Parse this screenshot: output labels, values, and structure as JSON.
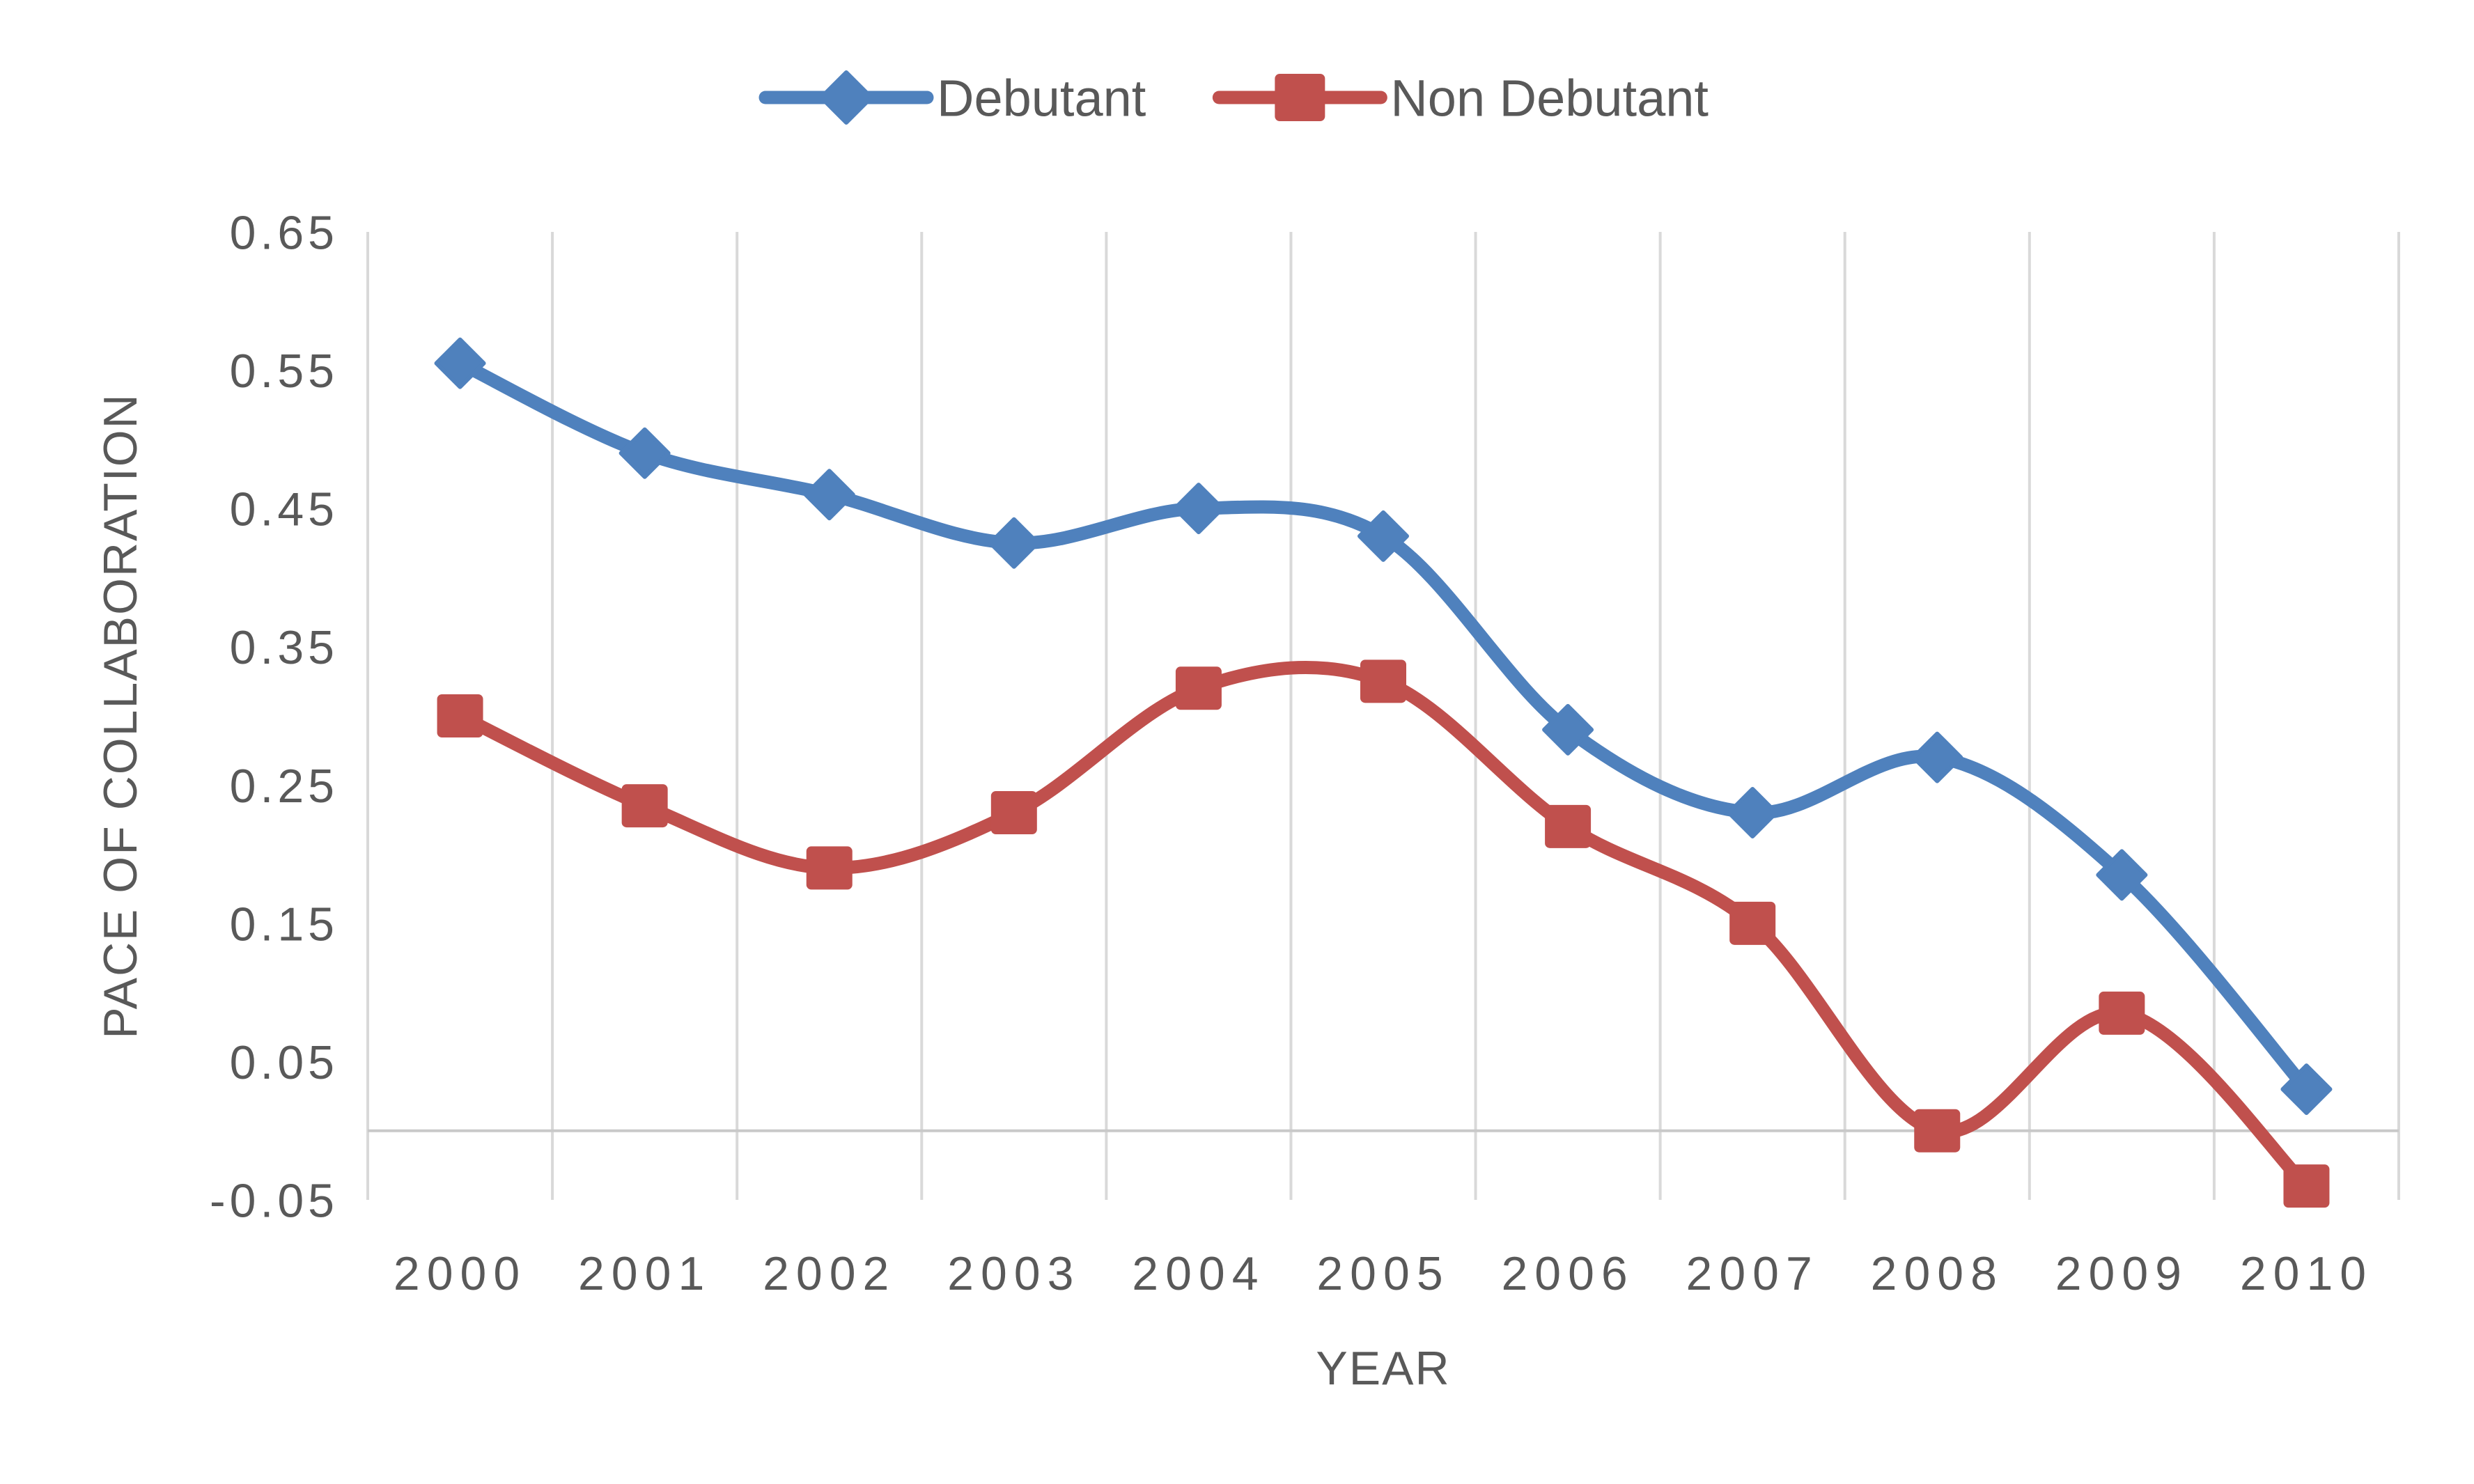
{
  "chart_data": {
    "type": "line",
    "title": "",
    "categories": [
      "2000",
      "2001",
      "2002",
      "2003",
      "2004",
      "2005",
      "2006",
      "2007",
      "2008",
      "2009",
      "2010"
    ],
    "series": [
      {
        "name": "Debutant",
        "color": "#4F81BD",
        "marker": "diamond",
        "values": [
          0.555,
          0.49,
          0.46,
          0.425,
          0.45,
          0.43,
          0.29,
          0.23,
          0.27,
          0.185,
          0.03
        ]
      },
      {
        "name": "Non Debutant",
        "color": "#C0504D",
        "marker": "square",
        "values": [
          0.3,
          0.235,
          0.19,
          0.23,
          0.32,
          0.325,
          0.22,
          0.15,
          0.0,
          0.085,
          -0.04
        ]
      }
    ],
    "xlabel": "YEAR",
    "ylabel": "PACE OF COLLABORATION",
    "ylim": [
      -0.05,
      0.65
    ],
    "yticks": [
      0.65,
      0.55,
      0.45,
      0.35,
      0.25,
      0.15,
      0.05,
      -0.05
    ],
    "ytick_labels": [
      "0.65",
      "0.55",
      "0.45",
      "0.35",
      "0.25",
      "0.15",
      "0.05",
      "-0.05"
    ],
    "grid": "vertical",
    "line_smooth": true,
    "legend_position": "top",
    "colors": {
      "text": "#595959",
      "gridline": "#D9D9D9",
      "zero_axis_line": "#C9C9C9",
      "background": "#FFFFFF"
    }
  }
}
